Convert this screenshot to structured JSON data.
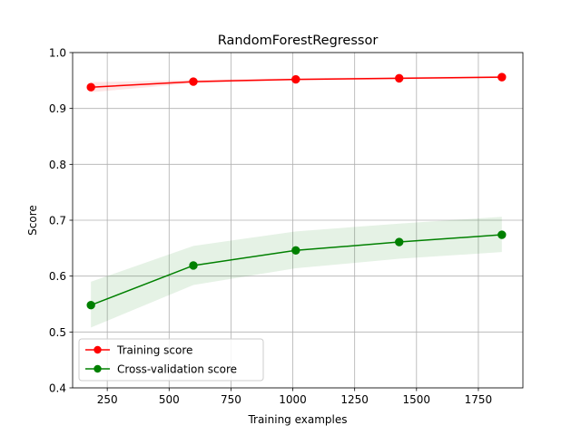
{
  "chart_data": {
    "type": "line",
    "title": "RandomForestRegressor",
    "xlabel": "Training examples",
    "ylabel": "Score",
    "xlim": [
      110,
      1930
    ],
    "ylim": [
      0.4,
      1.0
    ],
    "xticks": [
      250,
      500,
      750,
      1000,
      1250,
      1500,
      1750
    ],
    "xtick_labels": [
      "250",
      "500",
      "750",
      "1000",
      "1250",
      "1500",
      "1750"
    ],
    "yticks": [
      0.4,
      0.5,
      0.6,
      0.7,
      0.8,
      0.9,
      1.0
    ],
    "ytick_labels": [
      "0.4",
      "0.5",
      "0.6",
      "0.7",
      "0.8",
      "0.9",
      "1.0"
    ],
    "grid": true,
    "legend_position": "lower-left",
    "x": [
      184,
      598,
      1012,
      1430,
      1845
    ],
    "series": [
      {
        "name": "Training score",
        "color": "#ff0000",
        "values": [
          0.938,
          0.948,
          0.952,
          0.954,
          0.956
        ],
        "band_lower": [
          0.929,
          0.945,
          0.95,
          0.952,
          0.954
        ],
        "band_upper": [
          0.947,
          0.951,
          0.954,
          0.956,
          0.958
        ]
      },
      {
        "name": "Cross-validation score",
        "color": "#008000",
        "values": [
          0.548,
          0.619,
          0.646,
          0.661,
          0.674
        ],
        "band_lower": [
          0.508,
          0.584,
          0.614,
          0.631,
          0.643
        ],
        "band_upper": [
          0.59,
          0.654,
          0.68,
          0.694,
          0.706
        ]
      }
    ]
  }
}
